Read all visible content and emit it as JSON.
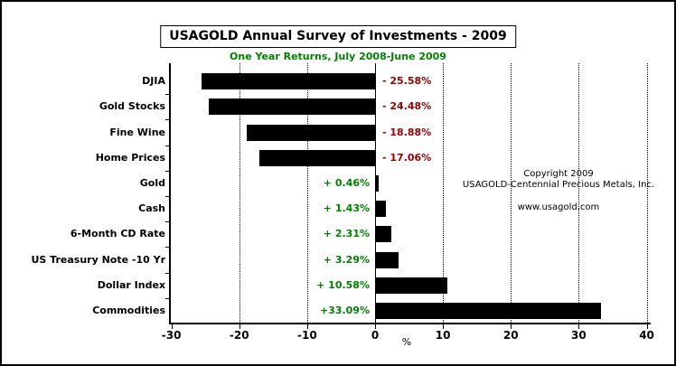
{
  "title": "USAGOLD Annual Survey of Investments - 2009",
  "subtitle": "One Year Returns, July 2008-June 2009",
  "xlabel": "%",
  "copyright": {
    "line1": "Copyright 2009",
    "line2": "USAGOLD-Centennial Precious Metals, Inc.",
    "line3": "www.usagold.com"
  },
  "colors": {
    "bar": "#000000",
    "negative_label": "#990000",
    "positive_label": "#008000",
    "subtitle_green": "#008000"
  },
  "chart_data": {
    "type": "bar",
    "orientation": "horizontal",
    "title": "USAGOLD Annual Survey of Investments - 2009",
    "subtitle": "One Year Returns, July 2008-June 2009",
    "xlabel": "%",
    "xlim": [
      -30,
      40
    ],
    "xticks": [
      -30,
      -20,
      -10,
      0,
      10,
      20,
      30,
      40
    ],
    "grid": "vertical-dotted",
    "legend": "none",
    "categories": [
      "DJIA",
      "Gold Stocks",
      "Fine Wine",
      "Home Prices",
      "Gold",
      "Cash",
      "6-Month CD Rate",
      "US Treasury Note -10 Yr",
      "Dollar Index",
      "Commodities"
    ],
    "values": [
      -25.58,
      -24.48,
      -18.88,
      -17.06,
      0.46,
      1.43,
      2.31,
      3.29,
      10.58,
      33.09
    ],
    "value_labels": [
      "- 25.58%",
      "- 24.48%",
      "- 18.88%",
      "- 17.06%",
      "+ 0.46%",
      "+ 1.43%",
      "+ 2.31%",
      "+ 3.29%",
      "+ 10.58%",
      "+33.09%"
    ]
  }
}
